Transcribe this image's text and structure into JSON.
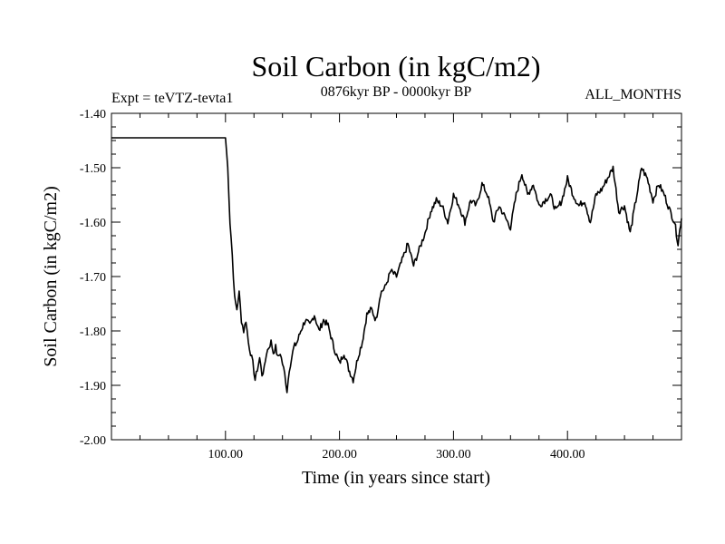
{
  "chart_data": {
    "type": "line",
    "title": "Soil Carbon (in kgC/m2)",
    "subtitle_left": "Expt = teVTZ-tevta1",
    "subtitle_center": "0876kyr BP - 0000kyr BP",
    "subtitle_right": "ALL_MONTHS",
    "xlabel": "Time (in years since start)",
    "ylabel": "Soil Carbon (in kgC/m2)",
    "xlim": [
      0,
      500
    ],
    "ylim": [
      -2.0,
      -1.4
    ],
    "xticks": [
      {
        "value": 100,
        "label": "100.00"
      },
      {
        "value": 200,
        "label": "200.00"
      },
      {
        "value": 300,
        "label": "300.00"
      },
      {
        "value": 400,
        "label": "400.00"
      }
    ],
    "yticks": [
      {
        "value": -1.4,
        "label": "-1.40"
      },
      {
        "value": -1.5,
        "label": "-1.50"
      },
      {
        "value": -1.6,
        "label": "-1.60"
      },
      {
        "value": -1.7,
        "label": "-1.70"
      },
      {
        "value": -1.8,
        "label": "-1.80"
      },
      {
        "value": -1.9,
        "label": "-1.90"
      },
      {
        "value": -2.0,
        "label": "-2.00"
      }
    ],
    "series": [
      {
        "name": "Soil Carbon",
        "x": [
          0,
          100,
          102,
          104,
          106,
          108,
          110,
          112,
          114,
          116,
          118,
          120,
          122,
          124,
          126,
          128,
          130,
          132,
          134,
          136,
          138,
          140,
          142,
          144,
          146,
          148,
          150,
          152,
          154,
          156,
          158,
          160,
          163,
          166,
          170,
          174,
          178,
          182,
          186,
          190,
          195,
          200,
          204,
          208,
          212,
          216,
          220,
          224,
          228,
          232,
          236,
          240,
          245,
          250,
          255,
          260,
          265,
          270,
          275,
          280,
          285,
          290,
          295,
          300,
          305,
          310,
          315,
          320,
          325,
          330,
          335,
          340,
          345,
          350,
          355,
          360,
          365,
          370,
          375,
          380,
          385,
          390,
          395,
          400,
          405,
          410,
          415,
          420,
          425,
          430,
          435,
          440,
          445,
          450,
          455,
          460,
          465,
          470,
          475,
          480,
          485,
          490,
          494,
          497,
          500
        ],
        "y": [
          -1.445,
          -1.445,
          -1.5,
          -1.6,
          -1.66,
          -1.74,
          -1.76,
          -1.73,
          -1.78,
          -1.8,
          -1.78,
          -1.82,
          -1.84,
          -1.86,
          -1.89,
          -1.87,
          -1.85,
          -1.88,
          -1.87,
          -1.84,
          -1.83,
          -1.82,
          -1.84,
          -1.83,
          -1.85,
          -1.84,
          -1.86,
          -1.88,
          -1.91,
          -1.87,
          -1.85,
          -1.83,
          -1.82,
          -1.8,
          -1.78,
          -1.79,
          -1.77,
          -1.8,
          -1.78,
          -1.79,
          -1.83,
          -1.86,
          -1.84,
          -1.87,
          -1.89,
          -1.85,
          -1.82,
          -1.77,
          -1.76,
          -1.78,
          -1.73,
          -1.72,
          -1.69,
          -1.7,
          -1.67,
          -1.64,
          -1.68,
          -1.65,
          -1.62,
          -1.58,
          -1.56,
          -1.57,
          -1.6,
          -1.55,
          -1.57,
          -1.6,
          -1.56,
          -1.57,
          -1.53,
          -1.55,
          -1.6,
          -1.57,
          -1.59,
          -1.61,
          -1.55,
          -1.51,
          -1.55,
          -1.53,
          -1.57,
          -1.56,
          -1.55,
          -1.58,
          -1.56,
          -1.52,
          -1.55,
          -1.57,
          -1.56,
          -1.6,
          -1.55,
          -1.54,
          -1.52,
          -1.5,
          -1.58,
          -1.57,
          -1.62,
          -1.56,
          -1.5,
          -1.52,
          -1.56,
          -1.53,
          -1.55,
          -1.58,
          -1.6,
          -1.64,
          -1.59
        ]
      }
    ]
  }
}
